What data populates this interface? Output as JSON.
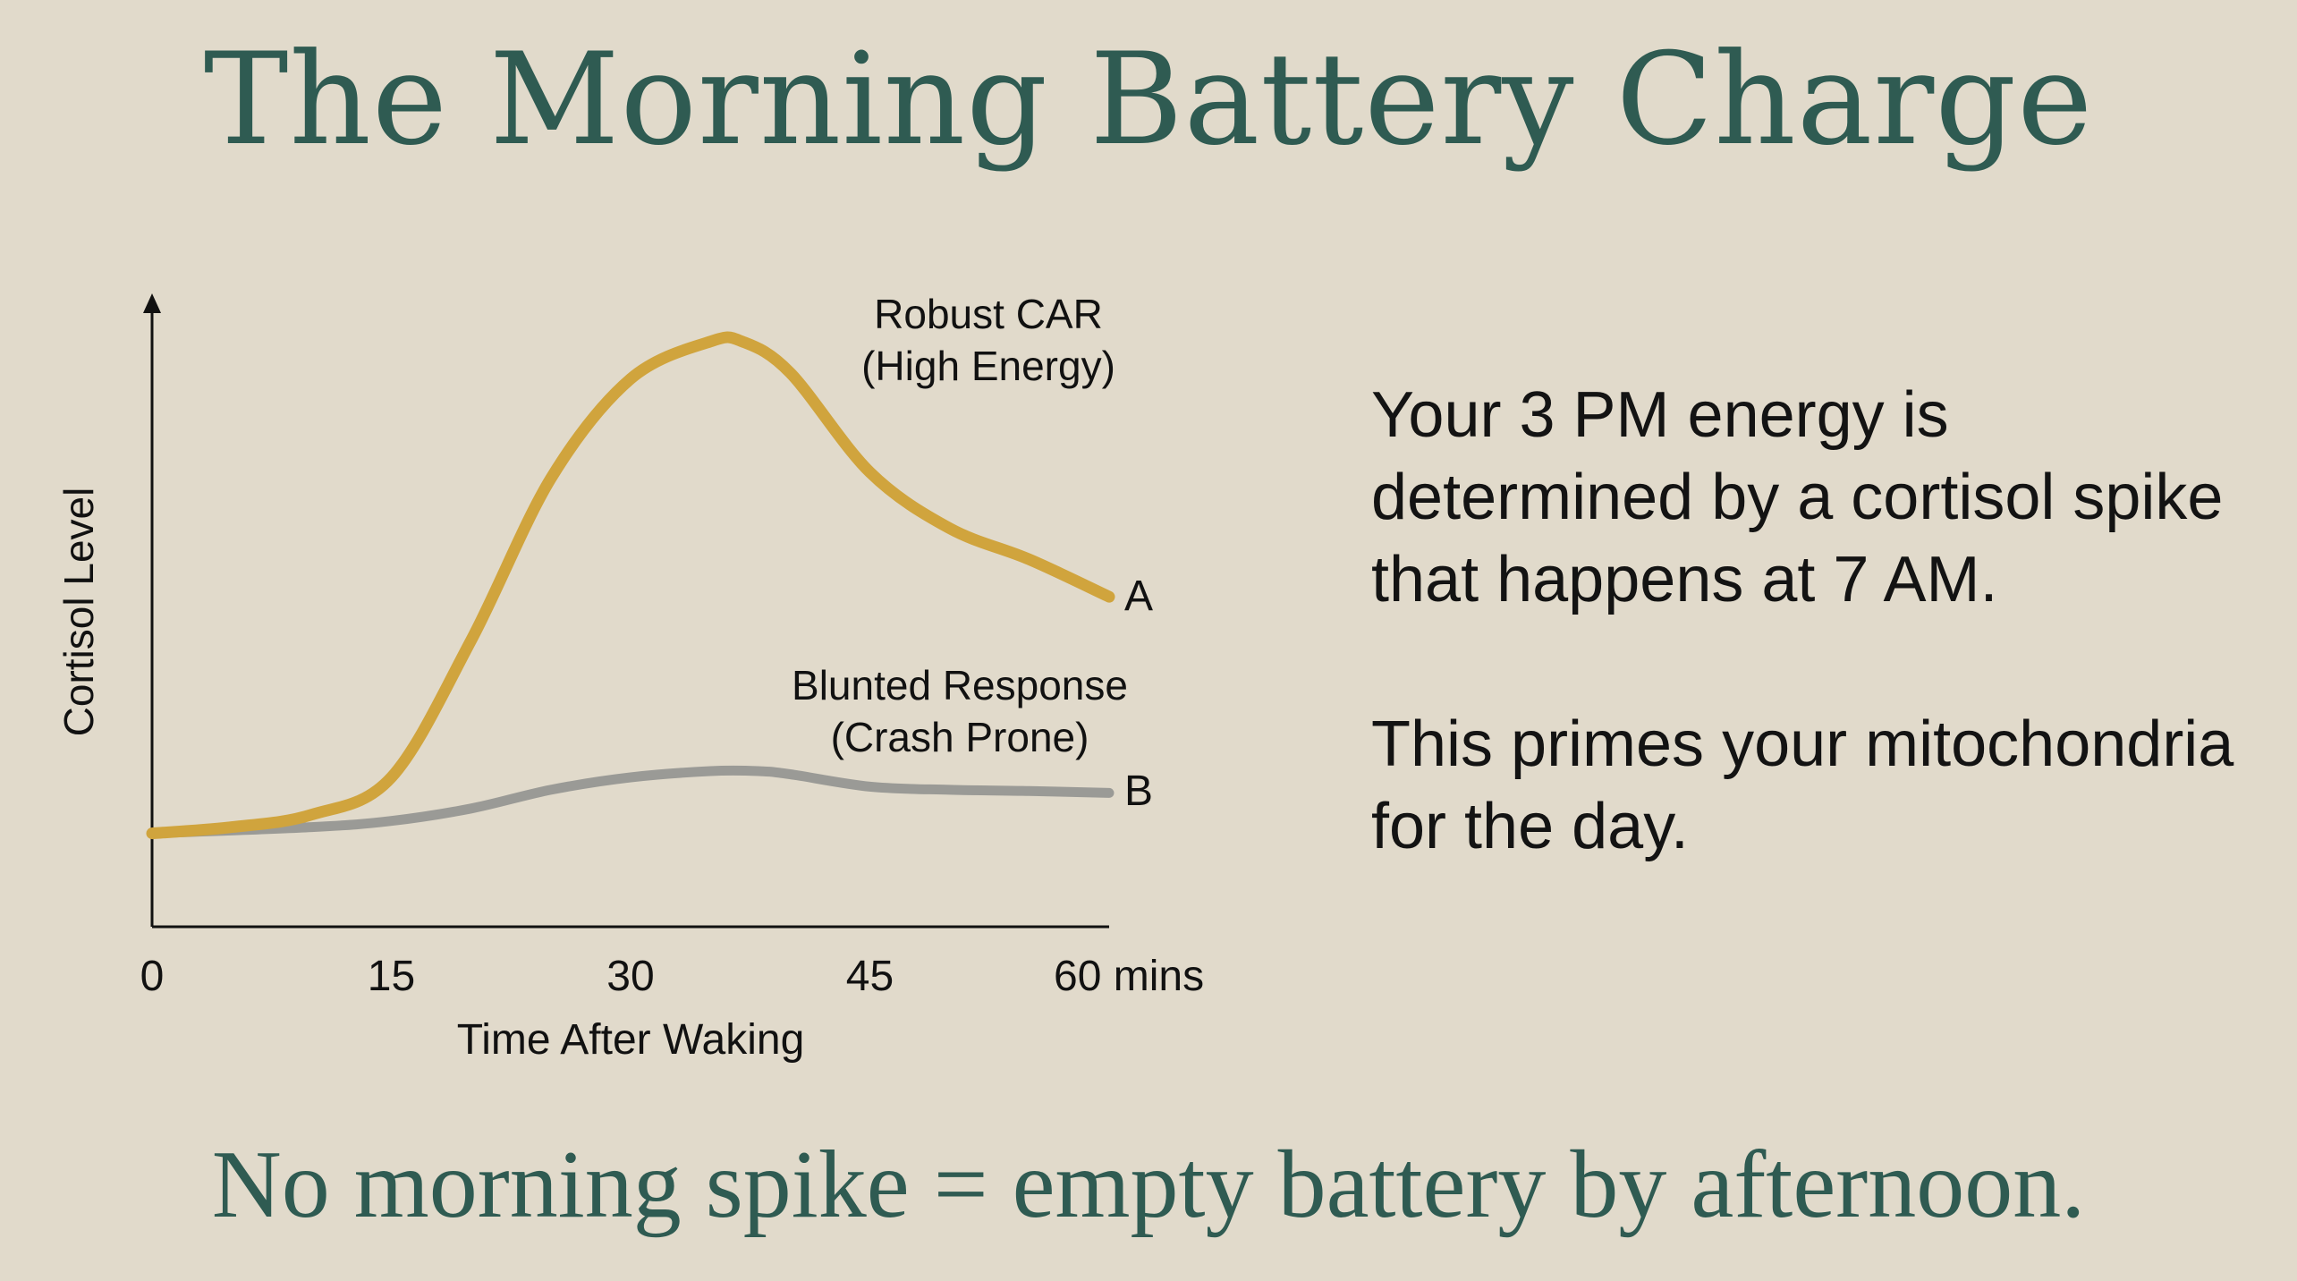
{
  "title": "The Morning Battery Charge",
  "chart_data": {
    "type": "line",
    "xlabel": "Time After Waking",
    "ylabel": "Cortisol Level",
    "x_ticks": [
      "0",
      "15",
      "30",
      "45",
      "60 mins"
    ],
    "xlim": [
      0,
      60
    ],
    "ylim": [
      0,
      1
    ],
    "grid": false,
    "series": [
      {
        "label_lines": [
          "Robust CAR",
          "(High Energy)"
        ],
        "end_marker": "A",
        "color": "#d0a43d",
        "x": [
          0,
          5,
          10,
          15,
          20,
          25,
          30,
          35,
          37,
          40,
          45,
          50,
          55,
          60
        ],
        "y": [
          0.15,
          0.16,
          0.18,
          0.24,
          0.46,
          0.72,
          0.88,
          0.94,
          0.94,
          0.89,
          0.73,
          0.64,
          0.59,
          0.53
        ]
      },
      {
        "label_lines": [
          "Blunted Response",
          "(Crash Prone)"
        ],
        "end_marker": "B",
        "color": "#9a9a96",
        "x": [
          0,
          10,
          15,
          20,
          25,
          30,
          35,
          38,
          40,
          45,
          50,
          55,
          60
        ],
        "y": [
          0.15,
          0.16,
          0.17,
          0.19,
          0.22,
          0.24,
          0.25,
          0.25,
          0.245,
          0.225,
          0.22,
          0.218,
          0.215
        ]
      }
    ]
  },
  "message": {
    "paragraph_1": "Your 3 PM energy is determined by a cortisol spike that happens at 7 AM.",
    "paragraph_2": "This primes your mitochondria for the day."
  },
  "tagline": "No morning spike = empty battery by afternoon."
}
